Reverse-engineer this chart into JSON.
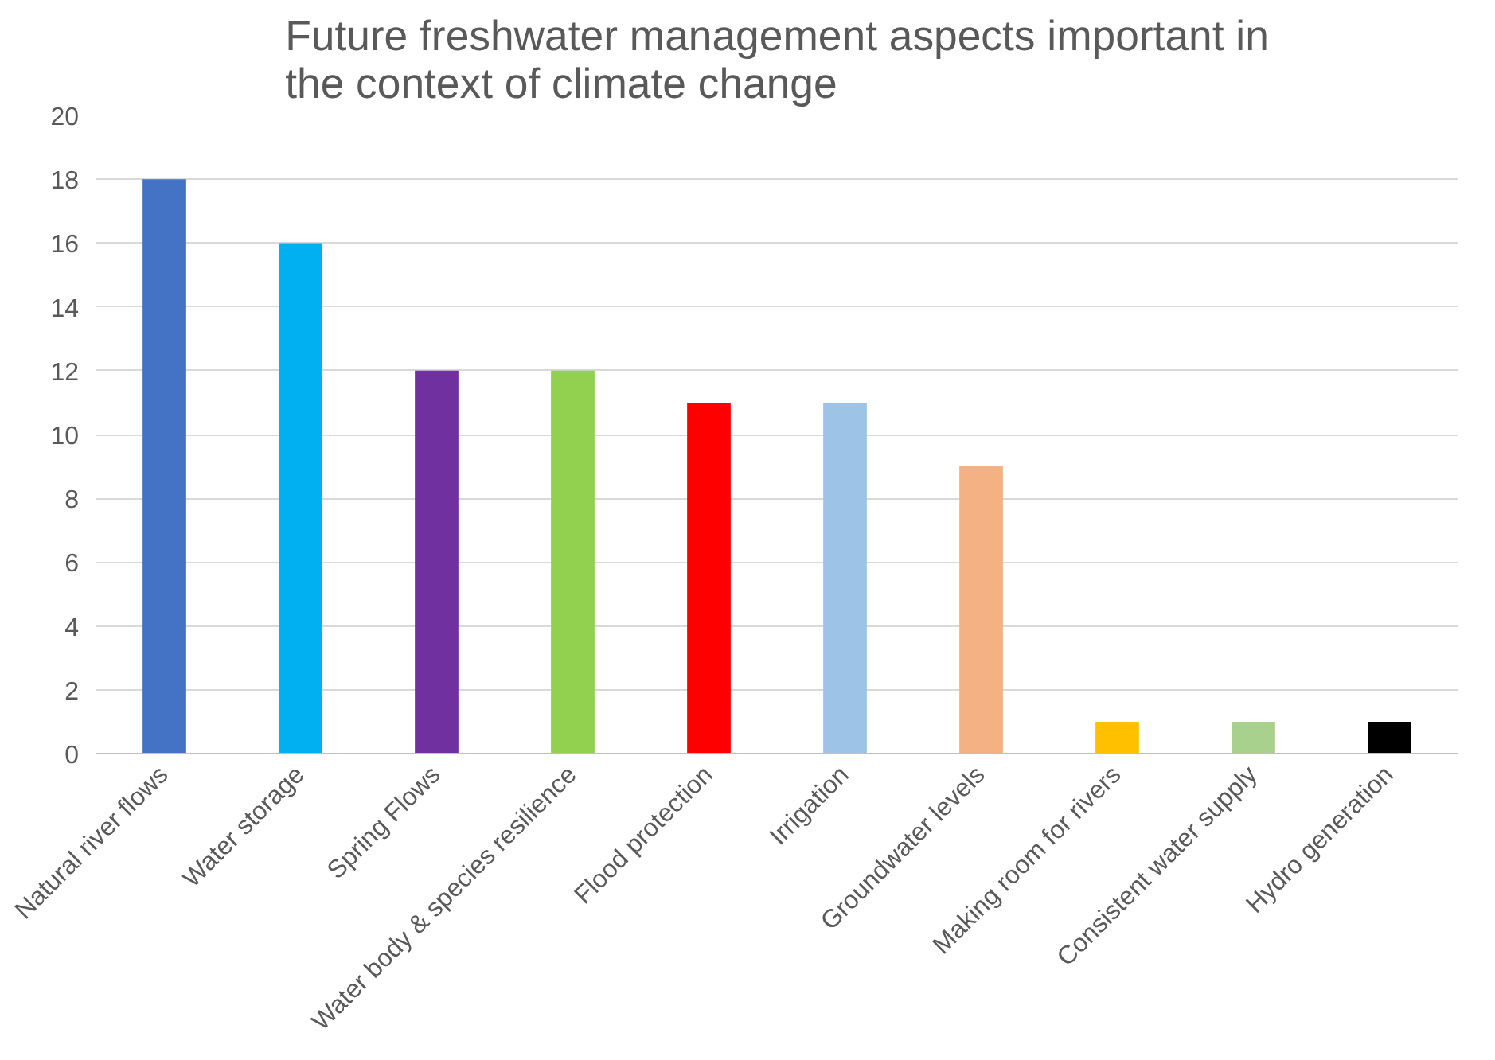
{
  "chart_data": {
    "type": "bar",
    "title": "Future freshwater management aspects important in the context of climate change",
    "categories": [
      "Natural river flows",
      "Water storage",
      "Spring Flows",
      "Water body & species resilience",
      "Flood protection",
      "Irrigation",
      "Groundwater levels",
      "Making room for rivers",
      "Consistent water supply",
      "Hydro generation"
    ],
    "values": [
      18,
      16,
      12,
      12,
      11,
      11,
      9,
      1,
      1,
      1
    ],
    "colors": [
      "#4472c4",
      "#00b0f0",
      "#7030a0",
      "#92d050",
      "#ff0000",
      "#9dc3e6",
      "#f4b183",
      "#ffc000",
      "#a9d18e",
      "#000000"
    ],
    "ylim": [
      0,
      20
    ],
    "yticks": [
      0,
      2,
      4,
      6,
      8,
      10,
      12,
      14,
      16,
      18,
      20
    ],
    "grid": "y"
  }
}
